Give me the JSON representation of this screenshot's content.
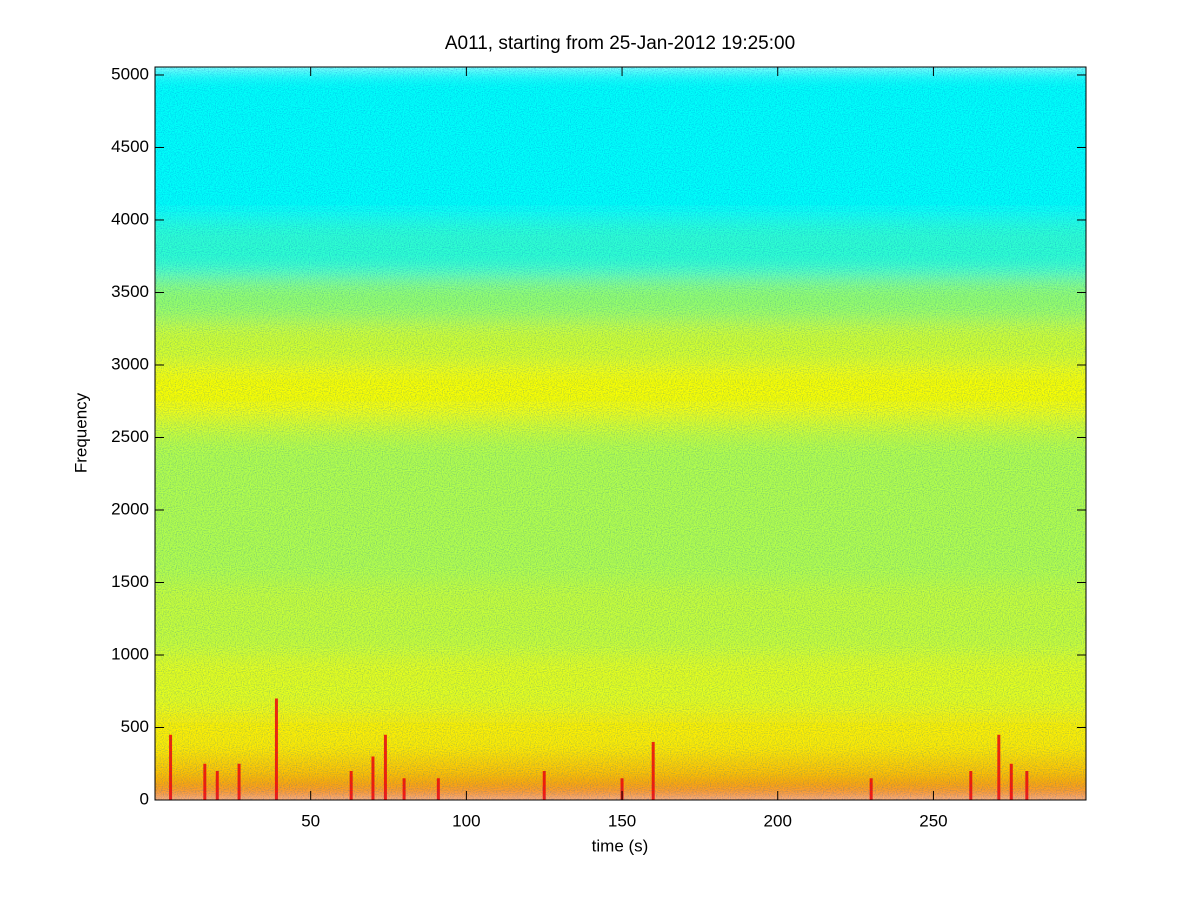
{
  "chart_data": {
    "type": "spectrogram",
    "title": "A011, starting from 25-Jan-2012 19:25:00",
    "xlabel": "time (s)",
    "ylabel": "Frequency",
    "xlim": [
      0,
      299
    ],
    "ylim": [
      0,
      5055
    ],
    "xticks": [
      50,
      100,
      150,
      200,
      250
    ],
    "yticks": [
      0,
      500,
      1000,
      1500,
      2000,
      2500,
      3000,
      3500,
      4000,
      4500,
      5000
    ],
    "colormap": "jet",
    "clim": [
      0,
      1
    ],
    "freq_edges": [
      0,
      100,
      300,
      600,
      1000,
      1500,
      2000,
      2500,
      2650,
      3000,
      3300,
      3600,
      4000,
      5055
    ],
    "levels": [
      0.8,
      0.68,
      0.64,
      0.6,
      0.57,
      0.55,
      0.55,
      0.58,
      0.62,
      0.58,
      0.52,
      0.42,
      0.38
    ],
    "bursts": {
      "time": [
        5,
        16,
        20,
        27,
        39,
        63,
        70,
        74,
        80,
        91,
        125,
        150,
        160,
        230,
        262,
        271,
        275,
        280
      ],
      "top": [
        450,
        250,
        200,
        250,
        700,
        200,
        300,
        450,
        150,
        150,
        200,
        150,
        400,
        150,
        200,
        450,
        250,
        200
      ],
      "level": 0.88
    }
  }
}
